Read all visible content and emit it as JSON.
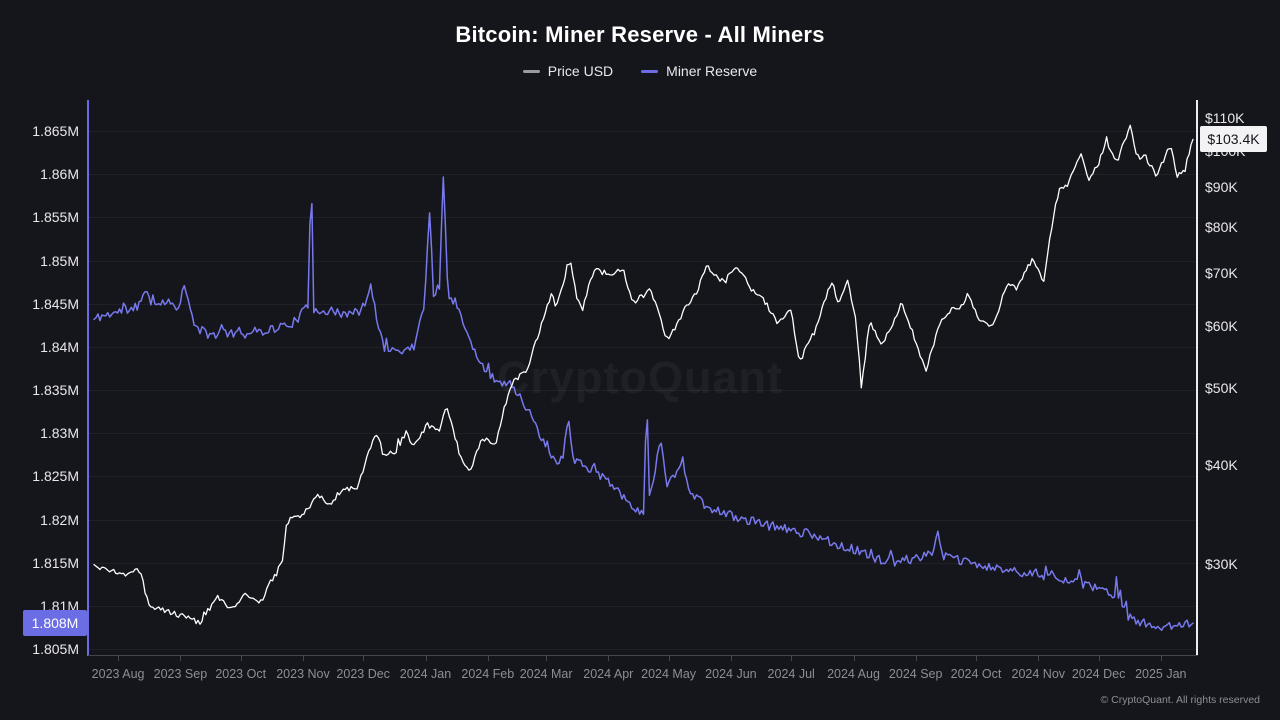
{
  "header": {
    "title": "Bitcoin: Miner Reserve - All Miners"
  },
  "legend": [
    {
      "label": "Price USD",
      "color": "#9a9aa4"
    },
    {
      "label": "Miner Reserve",
      "color": "#6b6de4"
    }
  ],
  "watermark": "CryptoQuant",
  "footer": {
    "copyright": "© CryptoQuant. All rights reserved"
  },
  "badges": {
    "reserve": {
      "label": "1.808M",
      "value": 1.808,
      "axis": "left"
    },
    "price": {
      "label": "$103.4K",
      "value": 103.4,
      "axis": "right"
    }
  },
  "chart_data": {
    "type": "line",
    "title": "Bitcoin: Miner Reserve - All Miners",
    "legend_position": "top",
    "grid": "horizontal",
    "x_domain": [
      "2023-07-17",
      "2025-01-19"
    ],
    "axes": {
      "left": {
        "scale": "linear",
        "unit": "M BTC",
        "range": [
          1.8686,
          1.8042
        ],
        "ticks": [
          {
            "label": "1.865M",
            "value": 1.865
          },
          {
            "label": "1.86M",
            "value": 1.86
          },
          {
            "label": "1.855M",
            "value": 1.855
          },
          {
            "label": "1.85M",
            "value": 1.85
          },
          {
            "label": "1.845M",
            "value": 1.845
          },
          {
            "label": "1.84M",
            "value": 1.84
          },
          {
            "label": "1.835M",
            "value": 1.835
          },
          {
            "label": "1.83M",
            "value": 1.83
          },
          {
            "label": "1.825M",
            "value": 1.825
          },
          {
            "label": "1.82M",
            "value": 1.82
          },
          {
            "label": "1.815M",
            "value": 1.815
          },
          {
            "label": "1.81M",
            "value": 1.81
          },
          {
            "label": "1.805M",
            "value": 1.805
          }
        ]
      },
      "right": {
        "scale": "log",
        "unit": "USD (K)",
        "range": [
          116,
          22.9
        ],
        "ticks": [
          {
            "label": "$110K",
            "value": 110
          },
          {
            "label": "$100K",
            "value": 100
          },
          {
            "label": "$90K",
            "value": 90
          },
          {
            "label": "$80K",
            "value": 80
          },
          {
            "label": "$70K",
            "value": 70
          },
          {
            "label": "$60K",
            "value": 60
          },
          {
            "label": "$50K",
            "value": 50
          },
          {
            "label": "$40K",
            "value": 40
          },
          {
            "label": "$30K",
            "value": 30
          }
        ]
      },
      "x": {
        "ticks": [
          {
            "label": "2023 Aug",
            "date": "2023-08-01"
          },
          {
            "label": "2023 Sep",
            "date": "2023-09-01"
          },
          {
            "label": "2023 Oct",
            "date": "2023-10-01"
          },
          {
            "label": "2023 Nov",
            "date": "2023-11-01"
          },
          {
            "label": "2023 Dec",
            "date": "2023-12-01"
          },
          {
            "label": "2024 Jan",
            "date": "2024-01-01"
          },
          {
            "label": "2024 Feb",
            "date": "2024-02-01"
          },
          {
            "label": "2024 Mar",
            "date": "2024-03-01"
          },
          {
            "label": "2024 Apr",
            "date": "2024-04-01"
          },
          {
            "label": "2024 May",
            "date": "2024-05-01"
          },
          {
            "label": "2024 Jun",
            "date": "2024-06-01"
          },
          {
            "label": "2024 Jul",
            "date": "2024-07-01"
          },
          {
            "label": "2024 Aug",
            "date": "2024-08-01"
          },
          {
            "label": "2024 Sep",
            "date": "2024-09-01"
          },
          {
            "label": "2024 Oct",
            "date": "2024-10-01"
          },
          {
            "label": "2024 Nov",
            "date": "2024-11-01"
          },
          {
            "label": "2024 Dec",
            "date": "2024-12-01"
          },
          {
            "label": "2025 Jan",
            "date": "2025-01-01"
          }
        ]
      }
    },
    "series": [
      {
        "name": "Miner Reserve",
        "axis": "left",
        "color": "#7779ec",
        "width": 1.5,
        "seed": 11,
        "noise": 0.00055,
        "spike_prob": 0.06,
        "spike_amp": 0.0016,
        "points": [
          [
            "2023-07-20",
            1.8432
          ],
          [
            "2023-07-28",
            1.8437
          ],
          [
            "2023-08-05",
            1.8441
          ],
          [
            "2023-08-12",
            1.8448
          ],
          [
            "2023-08-15",
            1.8472
          ],
          [
            "2023-08-17",
            1.8448
          ],
          [
            "2023-08-24",
            1.8452
          ],
          [
            "2023-08-31",
            1.8446
          ],
          [
            "2023-09-03",
            1.847
          ],
          [
            "2023-09-05",
            1.8448
          ],
          [
            "2023-09-09",
            1.842
          ],
          [
            "2023-09-16",
            1.8412
          ],
          [
            "2023-09-24",
            1.8416
          ],
          [
            "2023-10-01",
            1.8413
          ],
          [
            "2023-10-10",
            1.8417
          ],
          [
            "2023-10-20",
            1.8421
          ],
          [
            "2023-10-28",
            1.8428
          ],
          [
            "2023-11-03",
            1.8444
          ],
          [
            "2023-11-04",
            1.8446
          ],
          [
            "2023-11-05",
            1.866
          ],
          [
            "2023-11-06",
            1.8443
          ],
          [
            "2023-11-14",
            1.844
          ],
          [
            "2023-11-22",
            1.8436
          ],
          [
            "2023-11-30",
            1.844
          ],
          [
            "2023-12-05",
            1.8468
          ],
          [
            "2023-12-07",
            1.8442
          ],
          [
            "2023-12-11",
            1.8398
          ],
          [
            "2023-12-18",
            1.8394
          ],
          [
            "2023-12-26",
            1.8398
          ],
          [
            "2023-12-31",
            1.844
          ],
          [
            "2024-01-03",
            1.8553
          ],
          [
            "2024-01-05",
            1.846
          ],
          [
            "2024-01-08",
            1.847
          ],
          [
            "2024-01-10",
            1.861
          ],
          [
            "2024-01-12",
            1.8462
          ],
          [
            "2024-01-16",
            1.845
          ],
          [
            "2024-01-21",
            1.8418
          ],
          [
            "2024-01-27",
            1.8382
          ],
          [
            "2024-02-04",
            1.8362
          ],
          [
            "2024-02-12",
            1.8355
          ],
          [
            "2024-02-18",
            1.834
          ],
          [
            "2024-02-25",
            1.8305
          ],
          [
            "2024-03-04",
            1.8268
          ],
          [
            "2024-03-09",
            1.8262
          ],
          [
            "2024-03-12",
            1.8322
          ],
          [
            "2024-03-14",
            1.8268
          ],
          [
            "2024-03-20",
            1.8262
          ],
          [
            "2024-03-27",
            1.825
          ],
          [
            "2024-04-03",
            1.824
          ],
          [
            "2024-04-10",
            1.8222
          ],
          [
            "2024-04-16",
            1.8206
          ],
          [
            "2024-04-19",
            1.8208
          ],
          [
            "2024-04-20",
            1.839
          ],
          [
            "2024-04-21",
            1.823
          ],
          [
            "2024-04-22",
            1.8226
          ],
          [
            "2024-04-27",
            1.8292
          ],
          [
            "2024-04-30",
            1.824
          ],
          [
            "2024-05-07",
            1.8262
          ],
          [
            "2024-05-12",
            1.8232
          ],
          [
            "2024-05-18",
            1.8216
          ],
          [
            "2024-05-26",
            1.8208
          ],
          [
            "2024-06-03",
            1.8202
          ],
          [
            "2024-06-12",
            1.8196
          ],
          [
            "2024-06-20",
            1.8192
          ],
          [
            "2024-06-28",
            1.8188
          ],
          [
            "2024-07-06",
            1.8184
          ],
          [
            "2024-07-14",
            1.818
          ],
          [
            "2024-07-22",
            1.8172
          ],
          [
            "2024-07-30",
            1.8166
          ],
          [
            "2024-08-07",
            1.8158
          ],
          [
            "2024-08-15",
            1.8152
          ],
          [
            "2024-08-23",
            1.815
          ],
          [
            "2024-09-01",
            1.8154
          ],
          [
            "2024-09-09",
            1.8162
          ],
          [
            "2024-09-12",
            1.818
          ],
          [
            "2024-09-14",
            1.8158
          ],
          [
            "2024-09-21",
            1.8152
          ],
          [
            "2024-09-29",
            1.8148
          ],
          [
            "2024-10-07",
            1.8143
          ],
          [
            "2024-10-15",
            1.8141
          ],
          [
            "2024-10-23",
            1.8138
          ],
          [
            "2024-10-31",
            1.8133
          ],
          [
            "2024-11-08",
            1.8136
          ],
          [
            "2024-11-16",
            1.8128
          ],
          [
            "2024-11-24",
            1.8122
          ],
          [
            "2024-12-02",
            1.8117
          ],
          [
            "2024-12-09",
            1.811
          ],
          [
            "2024-12-10",
            1.8135
          ],
          [
            "2024-12-11",
            1.8103
          ],
          [
            "2024-12-16",
            1.8086
          ],
          [
            "2024-12-22",
            1.8079
          ],
          [
            "2024-12-29",
            1.8076
          ],
          [
            "2025-01-05",
            1.8074
          ],
          [
            "2025-01-10",
            1.8079
          ],
          [
            "2025-01-17",
            1.808
          ]
        ]
      },
      {
        "name": "Price USD",
        "axis": "right",
        "color": "#ffffff",
        "width": 1.3,
        "seed": 4,
        "noise": 0.008,
        "spike_prob": 0.05,
        "spike_amp": 0.036,
        "points": [
          [
            "2023-07-20",
            29.9
          ],
          [
            "2023-07-28",
            29.3
          ],
          [
            "2023-08-05",
            29.1
          ],
          [
            "2023-08-12",
            29.4
          ],
          [
            "2023-08-16",
            26.6
          ],
          [
            "2023-08-24",
            26.1
          ],
          [
            "2023-09-01",
            25.8
          ],
          [
            "2023-09-11",
            25.2
          ],
          [
            "2023-09-19",
            27.2
          ],
          [
            "2023-09-27",
            26.2
          ],
          [
            "2023-10-03",
            27.4
          ],
          [
            "2023-10-11",
            26.8
          ],
          [
            "2023-10-16",
            28.5
          ],
          [
            "2023-10-22",
            30.1
          ],
          [
            "2023-10-24",
            33.9
          ],
          [
            "2023-11-01",
            34.6
          ],
          [
            "2023-11-09",
            36.7
          ],
          [
            "2023-11-14",
            35.5
          ],
          [
            "2023-11-21",
            37.4
          ],
          [
            "2023-11-28",
            37.2
          ],
          [
            "2023-12-04",
            42.0
          ],
          [
            "2023-12-08",
            43.7
          ],
          [
            "2023-12-11",
            41.2
          ],
          [
            "2023-12-17",
            41.4
          ],
          [
            "2023-12-22",
            43.9
          ],
          [
            "2023-12-26",
            42.5
          ],
          [
            "2024-01-02",
            45.0
          ],
          [
            "2024-01-08",
            44.0
          ],
          [
            "2024-01-11",
            47.7
          ],
          [
            "2024-01-18",
            41.3
          ],
          [
            "2024-01-23",
            38.9
          ],
          [
            "2024-01-29",
            43.3
          ],
          [
            "2024-02-05",
            42.6
          ],
          [
            "2024-02-09",
            47.1
          ],
          [
            "2024-02-15",
            51.9
          ],
          [
            "2024-02-20",
            52.3
          ],
          [
            "2024-02-28",
            60.5
          ],
          [
            "2024-03-04",
            66.1
          ],
          [
            "2024-03-06",
            63.0
          ],
          [
            "2024-03-13",
            73.1
          ],
          [
            "2024-03-16",
            65.3
          ],
          [
            "2024-03-19",
            62.8
          ],
          [
            "2024-03-25",
            70.9
          ],
          [
            "2024-04-01",
            69.7
          ],
          [
            "2024-04-08",
            71.1
          ],
          [
            "2024-04-13",
            63.9
          ],
          [
            "2024-04-22",
            66.8
          ],
          [
            "2024-04-30",
            57.7
          ],
          [
            "2024-05-03",
            59.0
          ],
          [
            "2024-05-09",
            62.9
          ],
          [
            "2024-05-15",
            66.2
          ],
          [
            "2024-05-20",
            71.4
          ],
          [
            "2024-05-27",
            68.4
          ],
          [
            "2024-06-05",
            71.1
          ],
          [
            "2024-06-11",
            66.8
          ],
          [
            "2024-06-17",
            65.1
          ],
          [
            "2024-06-24",
            60.3
          ],
          [
            "2024-07-01",
            62.8
          ],
          [
            "2024-07-05",
            54.0
          ],
          [
            "2024-07-13",
            59.2
          ],
          [
            "2024-07-21",
            68.2
          ],
          [
            "2024-07-25",
            64.0
          ],
          [
            "2024-07-29",
            68.3
          ],
          [
            "2024-08-02",
            61.5
          ],
          [
            "2024-08-05",
            49.8
          ],
          [
            "2024-08-09",
            60.9
          ],
          [
            "2024-08-15",
            57.1
          ],
          [
            "2024-08-20",
            59.5
          ],
          [
            "2024-08-25",
            64.2
          ],
          [
            "2024-09-01",
            57.3
          ],
          [
            "2024-09-06",
            52.6
          ],
          [
            "2024-09-13",
            60.5
          ],
          [
            "2024-09-20",
            63.2
          ],
          [
            "2024-09-25",
            63.8
          ],
          [
            "2024-09-27",
            65.8
          ],
          [
            "2024-10-03",
            60.7
          ],
          [
            "2024-10-10",
            60.3
          ],
          [
            "2024-10-16",
            67.6
          ],
          [
            "2024-10-21",
            67.0
          ],
          [
            "2024-10-29",
            72.7
          ],
          [
            "2024-11-04",
            68.0
          ],
          [
            "2024-11-06",
            75.9
          ],
          [
            "2024-11-11",
            88.7
          ],
          [
            "2024-11-16",
            90.6
          ],
          [
            "2024-11-22",
            99.0
          ],
          [
            "2024-11-26",
            91.9
          ],
          [
            "2024-12-01",
            96.4
          ],
          [
            "2024-12-05",
            103.0
          ],
          [
            "2024-12-10",
            96.6
          ],
          [
            "2024-12-17",
            107.5
          ],
          [
            "2024-12-20",
            97.5
          ],
          [
            "2024-12-24",
            98.7
          ],
          [
            "2024-12-30",
            92.6
          ],
          [
            "2025-01-03",
            98.2
          ],
          [
            "2025-01-06",
            102.1
          ],
          [
            "2025-01-09",
            92.5
          ],
          [
            "2025-01-13",
            94.5
          ],
          [
            "2025-01-15",
            99.5
          ],
          [
            "2025-01-17",
            103.4
          ]
        ]
      }
    ]
  }
}
